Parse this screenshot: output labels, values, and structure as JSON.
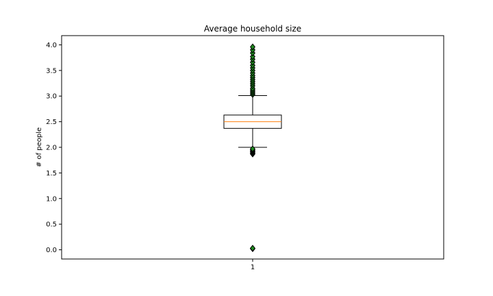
{
  "chart_data": {
    "type": "boxplot",
    "title": "Average household size",
    "xlabel": "",
    "ylabel": "# of people",
    "ylim": [
      -0.18,
      4.18
    ],
    "yticks": [
      0.0,
      0.5,
      1.0,
      1.5,
      2.0,
      2.5,
      3.0,
      3.5,
      4.0
    ],
    "ytick_labels": [
      "0.0",
      "0.5",
      "1.0",
      "1.5",
      "2.0",
      "2.5",
      "3.0",
      "3.5",
      "4.0"
    ],
    "categories": [
      "1"
    ],
    "grid": false,
    "box": {
      "whisker_low": 2.0,
      "q1": 2.37,
      "median": 2.5,
      "q3": 2.63,
      "whisker_high": 3.01
    },
    "outliers": [
      0.02,
      0.03,
      1.87,
      1.89,
      1.91,
      1.93,
      1.95,
      1.97,
      3.03,
      3.06,
      3.09,
      3.12,
      3.15,
      3.2,
      3.24,
      3.28,
      3.32,
      3.36,
      3.4,
      3.45,
      3.5,
      3.55,
      3.6,
      3.66,
      3.72,
      3.77,
      3.84,
      3.9,
      3.96
    ],
    "colors": {
      "box": "#000000",
      "median": "#ff7f0e",
      "outlier_fill": "#1f8a1f",
      "outlier_edge": "#000000"
    }
  }
}
